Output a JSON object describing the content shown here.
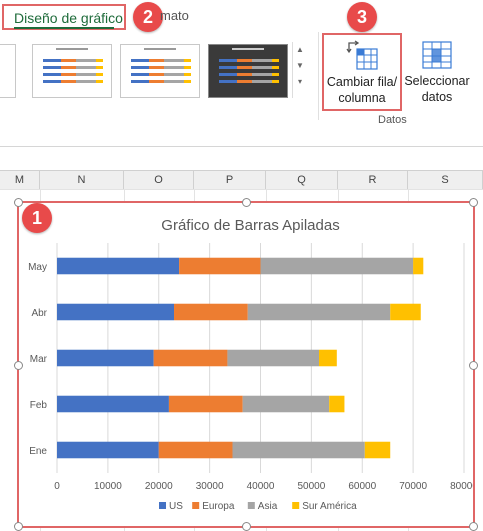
{
  "ribbon": {
    "active_tab": "Diseño de gráfico",
    "next_tab_fragment": "mato",
    "badges": {
      "one": "1",
      "two": "2",
      "three": "3"
    },
    "switch_button": {
      "line1": "Cambiar fila/",
      "line2": "columna"
    },
    "select_button": {
      "line1": "Seleccionar",
      "line2": "datos"
    },
    "group_label": "Datos",
    "gallery_arrows": {
      "up": "▲",
      "down": "▼",
      "more": "▾"
    }
  },
  "columns": [
    "M",
    "N",
    "O",
    "P",
    "Q",
    "R",
    "S"
  ],
  "colors": {
    "US": "#4472c4",
    "Europa": "#ed7d31",
    "Asia": "#a5a5a5",
    "Sur América": "#ffc000",
    "accent": "#e06666",
    "tab_green": "#1e6b3a"
  },
  "icons": {
    "switch": "switch-row-column-icon",
    "select": "select-data-icon"
  },
  "chart_data": {
    "type": "bar",
    "orientation": "horizontal",
    "stacked": true,
    "title": "Gráfico de Barras Apiladas",
    "categories": [
      "Ene",
      "Feb",
      "Mar",
      "Abr",
      "May"
    ],
    "series": [
      {
        "name": "US",
        "color": "#4472c4",
        "values": [
          20000,
          22000,
          19000,
          23000,
          24000
        ]
      },
      {
        "name": "Europa",
        "color": "#ed7d31",
        "values": [
          14500,
          14500,
          14500,
          14500,
          16000
        ]
      },
      {
        "name": "Asia",
        "color": "#a5a5a5",
        "values": [
          26000,
          17000,
          18000,
          28000,
          30000
        ]
      },
      {
        "name": "Sur América",
        "color": "#ffc000",
        "values": [
          5000,
          3000,
          3500,
          6000,
          2000
        ]
      }
    ],
    "xlim": [
      0,
      80000
    ],
    "xticks": [
      "0",
      "10000",
      "20000",
      "30000",
      "40000",
      "50000",
      "60000",
      "70000",
      "80000"
    ],
    "grid": true,
    "legend_position": "bottom"
  }
}
